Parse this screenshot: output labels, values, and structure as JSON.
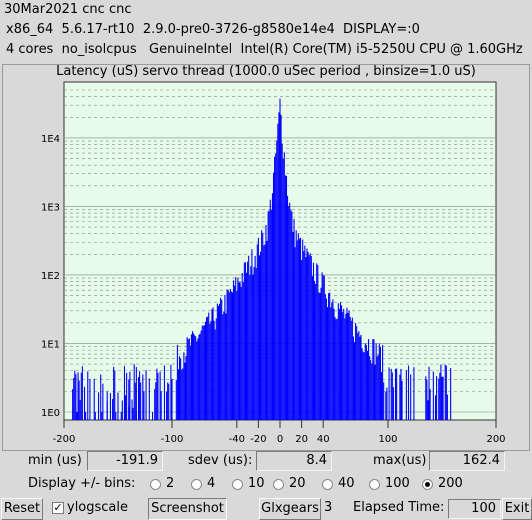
{
  "header": {
    "line1": "30Mar2021 cnc cnc",
    "line2": "x86_64  5.6.17-rt10  2.9.0-pre0-3726-g8580e14e4  DISPLAY=:0",
    "line3": "4 cores  no_isolcpus   GenuineIntel  Intel(R) Core(TM) i5-5250U CPU @ 1.60GHz"
  },
  "chart_data": {
    "type": "bar",
    "title": "Latency (uS) servo thread (1000.0 uSec period , binsize=1.0 uS)",
    "x_ticks": [
      "-200",
      "-100",
      "-40",
      "-20",
      "0",
      "20",
      "40",
      "100",
      "200"
    ],
    "x_tick_values": [
      -200,
      -100,
      -40,
      -20,
      0,
      20,
      40,
      100,
      200
    ],
    "y_ticks": [
      "1E0",
      "1E1",
      "1E2",
      "1E3",
      "1E4"
    ],
    "y_scale": "log",
    "xlim": [
      -200,
      200
    ],
    "ylim": [
      1,
      50000
    ],
    "bar_color": "#0000ff",
    "plot_background": "#e8fae8",
    "grid": true,
    "peak_x": 0,
    "peak_count": 30000,
    "min_x": -191.9,
    "max_x": 162.4
  },
  "stats": {
    "min_label": "min (us)",
    "min_value": "-191.9",
    "sdev_label": "sdev (us):",
    "sdev_value": "8.4",
    "max_label": "max(us)",
    "max_value": "162.4"
  },
  "bins": {
    "label": "Display +/- bins:",
    "options": [
      "2",
      "4",
      "10",
      "20",
      "40",
      "100",
      "200"
    ],
    "selected": "200"
  },
  "toolbar": {
    "reset_label": "Reset",
    "ylogscale_label": "ylogscale",
    "ylogscale_checked": true,
    "screenshot_label": "Screenshot",
    "glxgears_label": "Glxgears",
    "glxgears_count": "3",
    "elapsed_label": "Elapsed Time:",
    "elapsed_value": "100",
    "exit_label": "Exit"
  }
}
